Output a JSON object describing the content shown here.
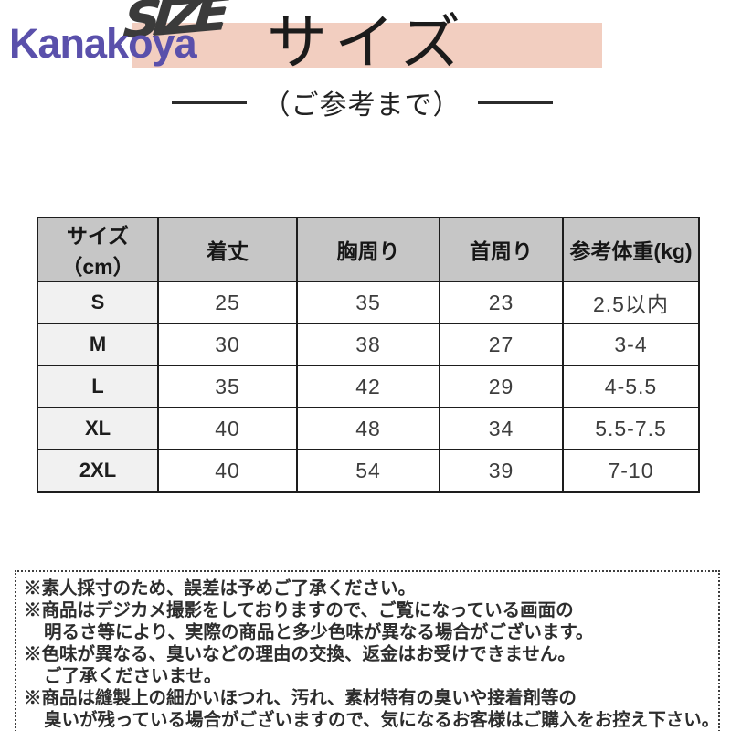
{
  "brand": {
    "watermark": "Kanakoya",
    "size_graffiti": "SIZE"
  },
  "header": {
    "title": "サイズ",
    "subtitle": "（ご参考まで）"
  },
  "size_table": {
    "columns": [
      "サイズ（cm）",
      "着丈",
      "胸周り",
      "首周り",
      "参考体重(kg)"
    ],
    "rows": [
      [
        "S",
        "25",
        "35",
        "23",
        "2.5以内"
      ],
      [
        "M",
        "30",
        "38",
        "27",
        "3-4"
      ],
      [
        "L",
        "35",
        "42",
        "29",
        "4-5.5"
      ],
      [
        "XL",
        "40",
        "48",
        "34",
        "5.5-7.5"
      ],
      [
        "2XL",
        "40",
        "54",
        "39",
        "7-10"
      ]
    ]
  },
  "notes": {
    "lines": [
      {
        "text": "※素人採寸のため、誤差は予めご了承ください。",
        "indent": false
      },
      {
        "text": "※商品はデジカメ撮影をしておりますので、ご覧になっている画面の",
        "indent": false
      },
      {
        "text": "明るさ等により、実際の商品と多少色味が異なる場合がございます。",
        "indent": true
      },
      {
        "text": "※色味が異なる、臭いなどの理由の交換、返金はお受けできません。",
        "indent": false
      },
      {
        "text": "ご了承くださいませ。",
        "indent": true
      },
      {
        "text": "※商品は縫製上の細かいほつれ、汚れ、素材特有の臭いや接着剤等の",
        "indent": false
      },
      {
        "text": "臭いが残っている場合がございますので、気になるお客様はご購入をお控え下さい。",
        "indent": true
      }
    ]
  },
  "colors": {
    "banner_pink": "#f2cec0",
    "watermark_blue": "#5a50ab",
    "graffiti_dark": "#3b3b3b",
    "table_header_gray": "#c6c6c6",
    "row_label_gray": "#f1f1f1",
    "text_dark": "#1f1f1f"
  }
}
